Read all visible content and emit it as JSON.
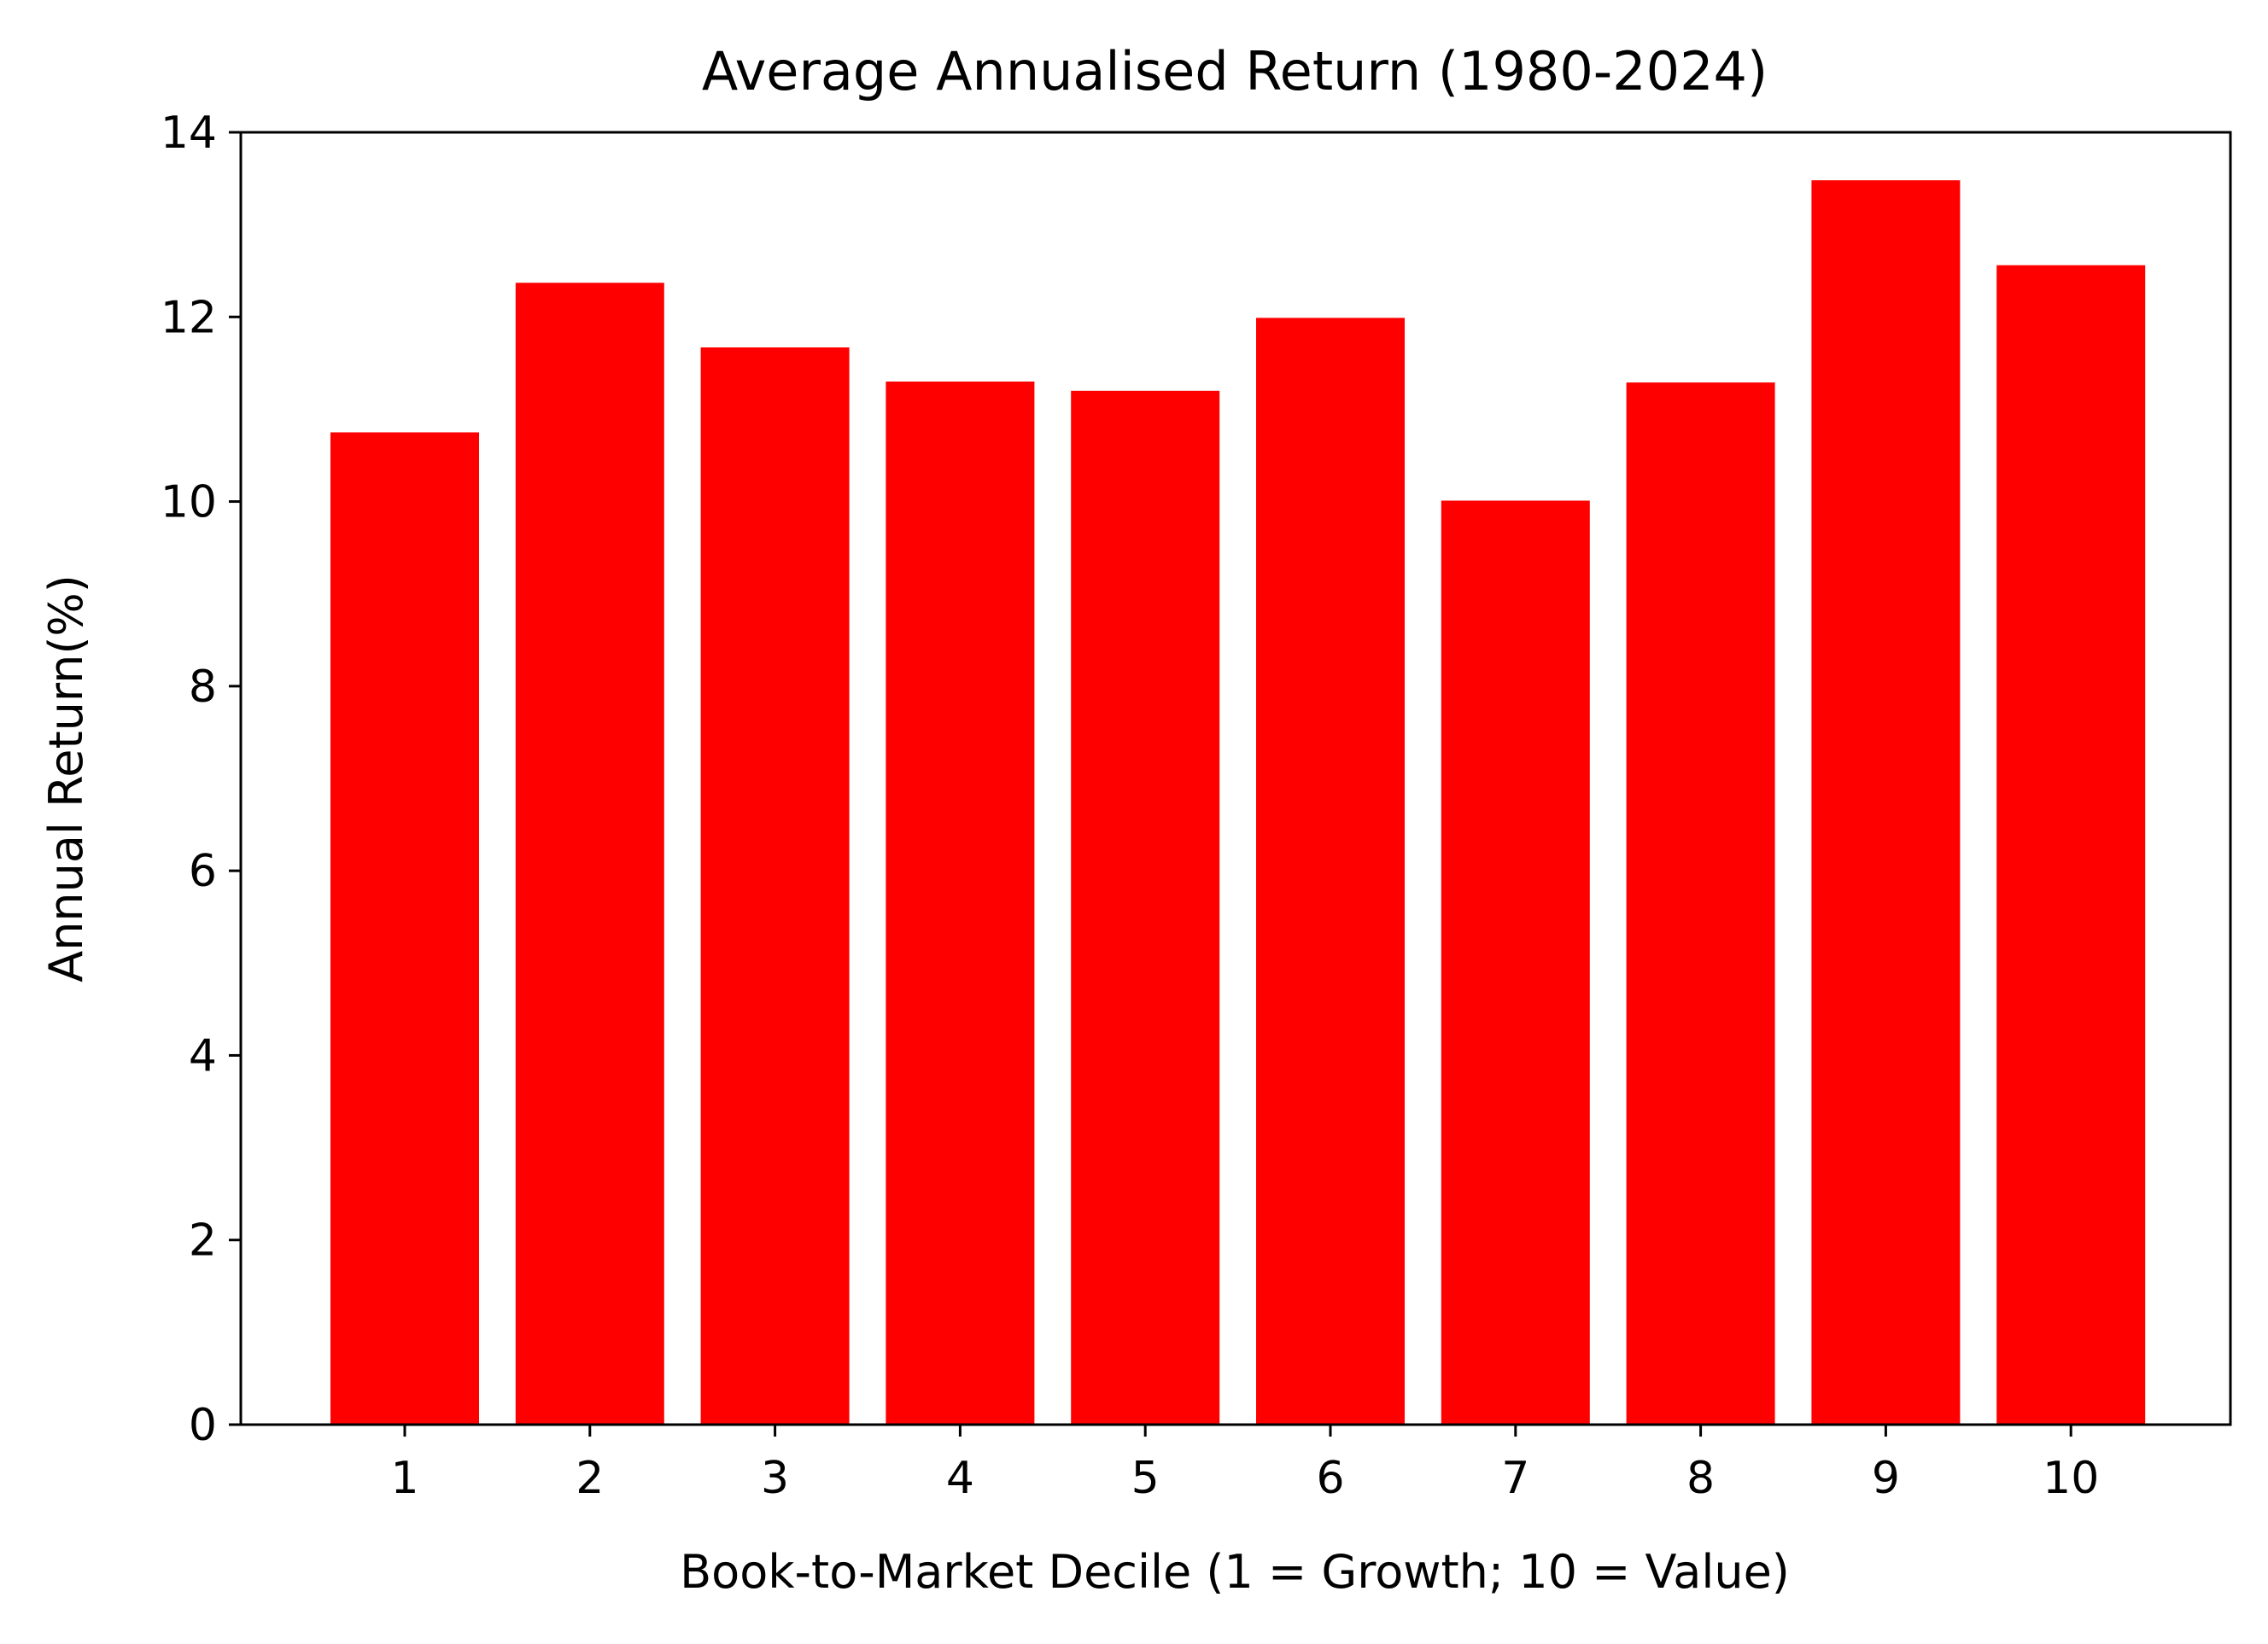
{
  "chart_data": {
    "type": "bar",
    "title": "Average Annualised Return (1980-2024)",
    "xlabel": "Book-to-Market Decile (1 = Growth; 10 = Value)",
    "ylabel": "Annual Return(%)",
    "categories": [
      "1",
      "2",
      "3",
      "4",
      "5",
      "6",
      "7",
      "8",
      "9",
      "10"
    ],
    "values": [
      10.75,
      12.37,
      11.67,
      11.3,
      11.2,
      11.99,
      10.01,
      11.29,
      13.48,
      12.56
    ],
    "ylim": [
      0,
      14
    ],
    "yticks": [
      0,
      2,
      4,
      6,
      8,
      10,
      12,
      14
    ],
    "bar_color": "#ff0000",
    "grid": false,
    "legend": "none"
  }
}
